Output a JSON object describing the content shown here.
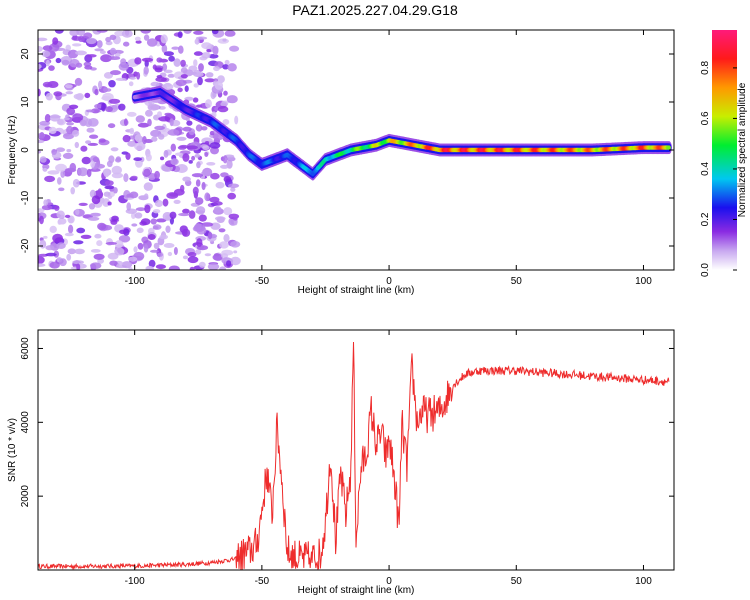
{
  "title": "PAZ1.2025.227.04.29.G18",
  "chart_data": [
    {
      "type": "heatmap",
      "xlabel": "Height of straight line (km)",
      "ylabel": "Frequency (Hz)",
      "xlim": [
        -138,
        112
      ],
      "ylim": [
        -25,
        25
      ],
      "x_ticks": [
        -100,
        -50,
        0,
        50,
        100
      ],
      "y_ticks": [
        -20,
        -10,
        0,
        10,
        20
      ],
      "colorbar": {
        "label": "Normalized spectral amplitude",
        "range": [
          0,
          0.95
        ],
        "ticks": [
          0.0,
          0.2,
          0.4,
          0.6,
          0.8
        ]
      },
      "ridge": {
        "x": [
          -100,
          -90,
          -80,
          -70,
          -60,
          -55,
          -50,
          -45,
          -40,
          -35,
          -30,
          -25,
          -20,
          -15,
          -10,
          -5,
          0,
          10,
          20,
          40,
          60,
          80,
          100,
          110
        ],
        "frequency": [
          11,
          12,
          8.5,
          6,
          2,
          -1,
          -3,
          -2,
          -1,
          -3,
          -5,
          -2,
          -1,
          0,
          0.5,
          1,
          2,
          1,
          0,
          0,
          0,
          0,
          0.5,
          0.5
        ],
        "amplitude": [
          0.15,
          0.2,
          0.25,
          0.3,
          0.3,
          0.3,
          0.35,
          0.3,
          0.3,
          0.35,
          0.4,
          0.45,
          0.5,
          0.55,
          0.6,
          0.65,
          0.7,
          0.8,
          0.9,
          0.9,
          0.85,
          0.8,
          0.85,
          0.8
        ]
      }
    },
    {
      "type": "line",
      "xlabel": "Height of straight line (km)",
      "ylabel": "SNR (10 * v/v)",
      "xlim": [
        -138,
        112
      ],
      "ylim": [
        0,
        6500
      ],
      "x_ticks": [
        -100,
        -50,
        0,
        50,
        100
      ],
      "y_ticks": [
        2000,
        4000,
        6000
      ],
      "color": "#ee2c2c",
      "series": [
        {
          "x": [
            -138,
            -120,
            -100,
            -80,
            -70,
            -60,
            -55,
            -52,
            -50,
            -48,
            -46,
            -44,
            -42,
            -40,
            -38,
            -35,
            -30,
            -27,
            -25,
            -23,
            -21,
            -19,
            -17,
            -15,
            -14,
            -13,
            -11,
            -9,
            -7,
            -5,
            -3,
            -1,
            0,
            2,
            4,
            5,
            7,
            9,
            11,
            13,
            15,
            20,
            25,
            30,
            35,
            40,
            50,
            60,
            70,
            80,
            90,
            100,
            110
          ],
          "y": [
            100,
            100,
            110,
            150,
            200,
            300,
            500,
            700,
            1600,
            2700,
            1500,
            3900,
            2300,
            500,
            400,
            300,
            300,
            400,
            1300,
            3200,
            800,
            2600,
            1500,
            2700,
            6300,
            800,
            2800,
            3100,
            4300,
            3400,
            3700,
            3000,
            3600,
            2500,
            1100,
            4000,
            2800,
            5500,
            4000,
            4300,
            4200,
            4300,
            5000,
            5300,
            5400,
            5400,
            5400,
            5350,
            5300,
            5250,
            5200,
            5150,
            5100
          ]
        }
      ]
    }
  ]
}
